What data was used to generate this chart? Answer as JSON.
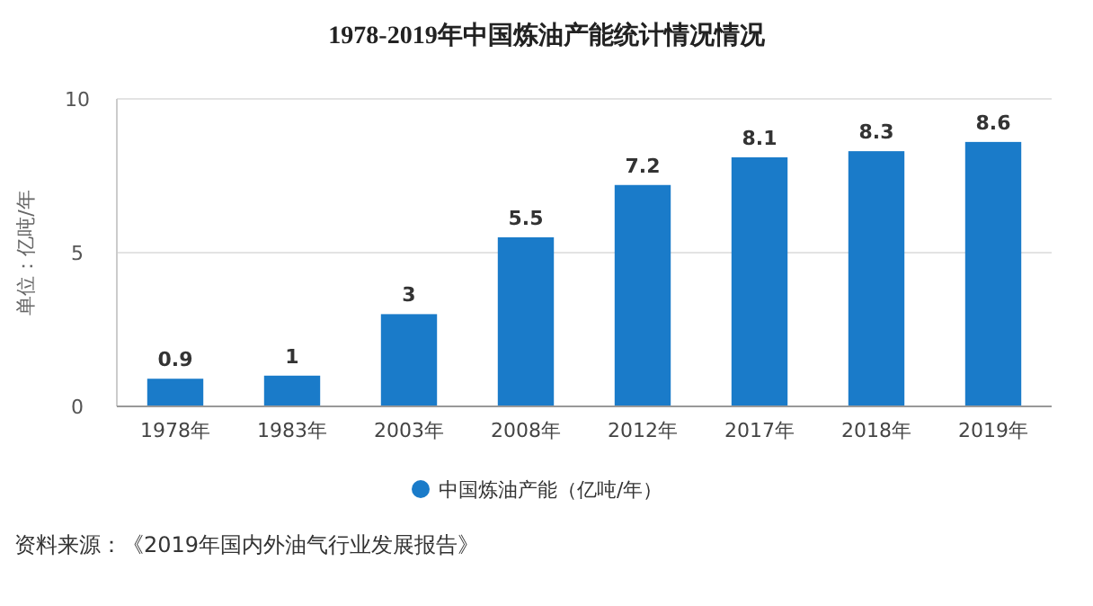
{
  "chart_data": {
    "type": "bar",
    "title": "1978-2019年中国炼油产能统计情况情况",
    "ylabel": "单位：亿吨/年",
    "categories": [
      "1978年",
      "1983年",
      "2003年",
      "2008年",
      "2012年",
      "2017年",
      "2018年",
      "2019年"
    ],
    "series": [
      {
        "name": "中国炼油产能（亿吨/年）",
        "color": "#1a7bc9",
        "values": [
          0.9,
          1,
          3,
          5.5,
          7.2,
          8.1,
          8.3,
          8.6
        ]
      }
    ],
    "ylim": [
      0,
      10
    ],
    "yticks": [
      0,
      5,
      10
    ],
    "grid": "y",
    "legend": "bottom",
    "data_labels": true,
    "annotations": [
      "资料来源：《2019年国内外油气行业发展报告》"
    ]
  }
}
